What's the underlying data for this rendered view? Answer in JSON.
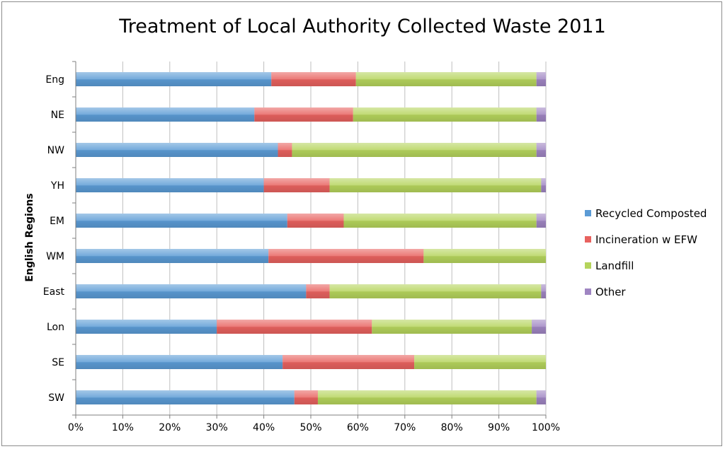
{
  "chart_data": {
    "type": "bar",
    "orientation": "horizontal",
    "stacked": "percent",
    "title": "Treatment of Local Authority Collected Waste 2011",
    "ylabel": "English Regions",
    "xlabel": "",
    "xlim": [
      0,
      100
    ],
    "x_tick_labels": [
      "0%",
      "10%",
      "20%",
      "30%",
      "40%",
      "50%",
      "60%",
      "70%",
      "80%",
      "90%",
      "100%"
    ],
    "grid": true,
    "legend_position": "right",
    "categories": [
      "Eng",
      "NE",
      "NW",
      "YH",
      "EM",
      "WM",
      "East",
      "Lon",
      "SE",
      "SW"
    ],
    "series": [
      {
        "name": "Recycled Composted",
        "color": "#5b9bd5",
        "values": [
          41.6,
          38,
          43,
          40,
          45,
          41,
          49,
          30,
          44,
          46.5
        ]
      },
      {
        "name": "Incineration w EFW",
        "color": "#e8625f",
        "values": [
          18,
          21,
          3,
          14,
          12,
          33,
          5,
          33,
          28,
          5
        ]
      },
      {
        "name": "Landfill",
        "color": "#b5d45c",
        "values": [
          38.4,
          39,
          52,
          45,
          41,
          26,
          45,
          34,
          28,
          46.5
        ]
      },
      {
        "name": "Other",
        "color": "#9f85c2",
        "values": [
          2,
          2,
          2,
          1,
          2,
          0,
          1,
          3,
          0,
          2
        ]
      }
    ]
  }
}
